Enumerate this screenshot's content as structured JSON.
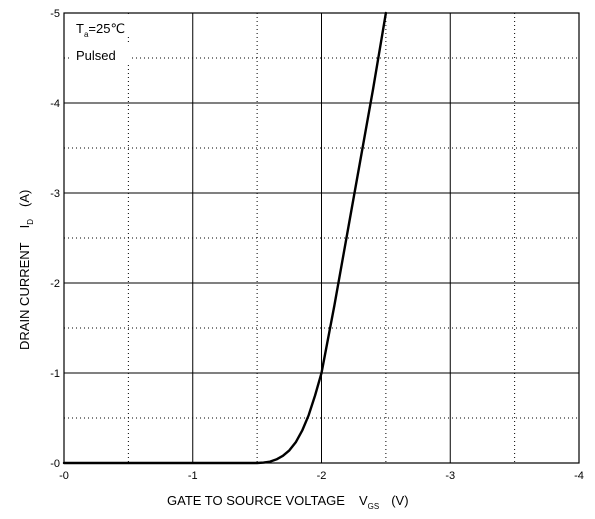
{
  "chart_data": {
    "type": "line",
    "xlabel": {
      "main": "GATE TO SOURCE VOLTAGE",
      "symbol": "V",
      "subscript": "GS",
      "unit": "(V)"
    },
    "ylabel": {
      "main": "DRAIN CURRENT",
      "symbol": "I",
      "subscript": "D",
      "unit": "(A)"
    },
    "xlim": [
      0,
      -4
    ],
    "ylim": [
      0,
      -5
    ],
    "x_ticks": [
      "-0",
      "-1",
      "-2",
      "-3",
      "-4"
    ],
    "y_ticks": [
      "-0",
      "-1",
      "-2",
      "-3",
      "-4",
      "-5"
    ],
    "grid": true,
    "annotations": [
      {
        "name": "temperature",
        "prefix": "T",
        "subscript": "a",
        "text": "=25℃"
      },
      {
        "name": "condition",
        "text": "Pulsed"
      }
    ],
    "series": [
      {
        "x": [
          0,
          -1.5,
          -1.55,
          -1.6,
          -1.65,
          -1.7,
          -1.75,
          -1.8,
          -1.85,
          -1.9,
          -1.95,
          -2.0,
          -2.1,
          -2.2,
          -2.3,
          -2.4,
          -2.5
        ],
        "y": [
          0,
          0,
          -0.005,
          -0.015,
          -0.04,
          -0.08,
          -0.14,
          -0.23,
          -0.36,
          -0.53,
          -0.75,
          -1.0,
          -1.75,
          -2.55,
          -3.35,
          -4.15,
          -5.0
        ]
      }
    ]
  }
}
